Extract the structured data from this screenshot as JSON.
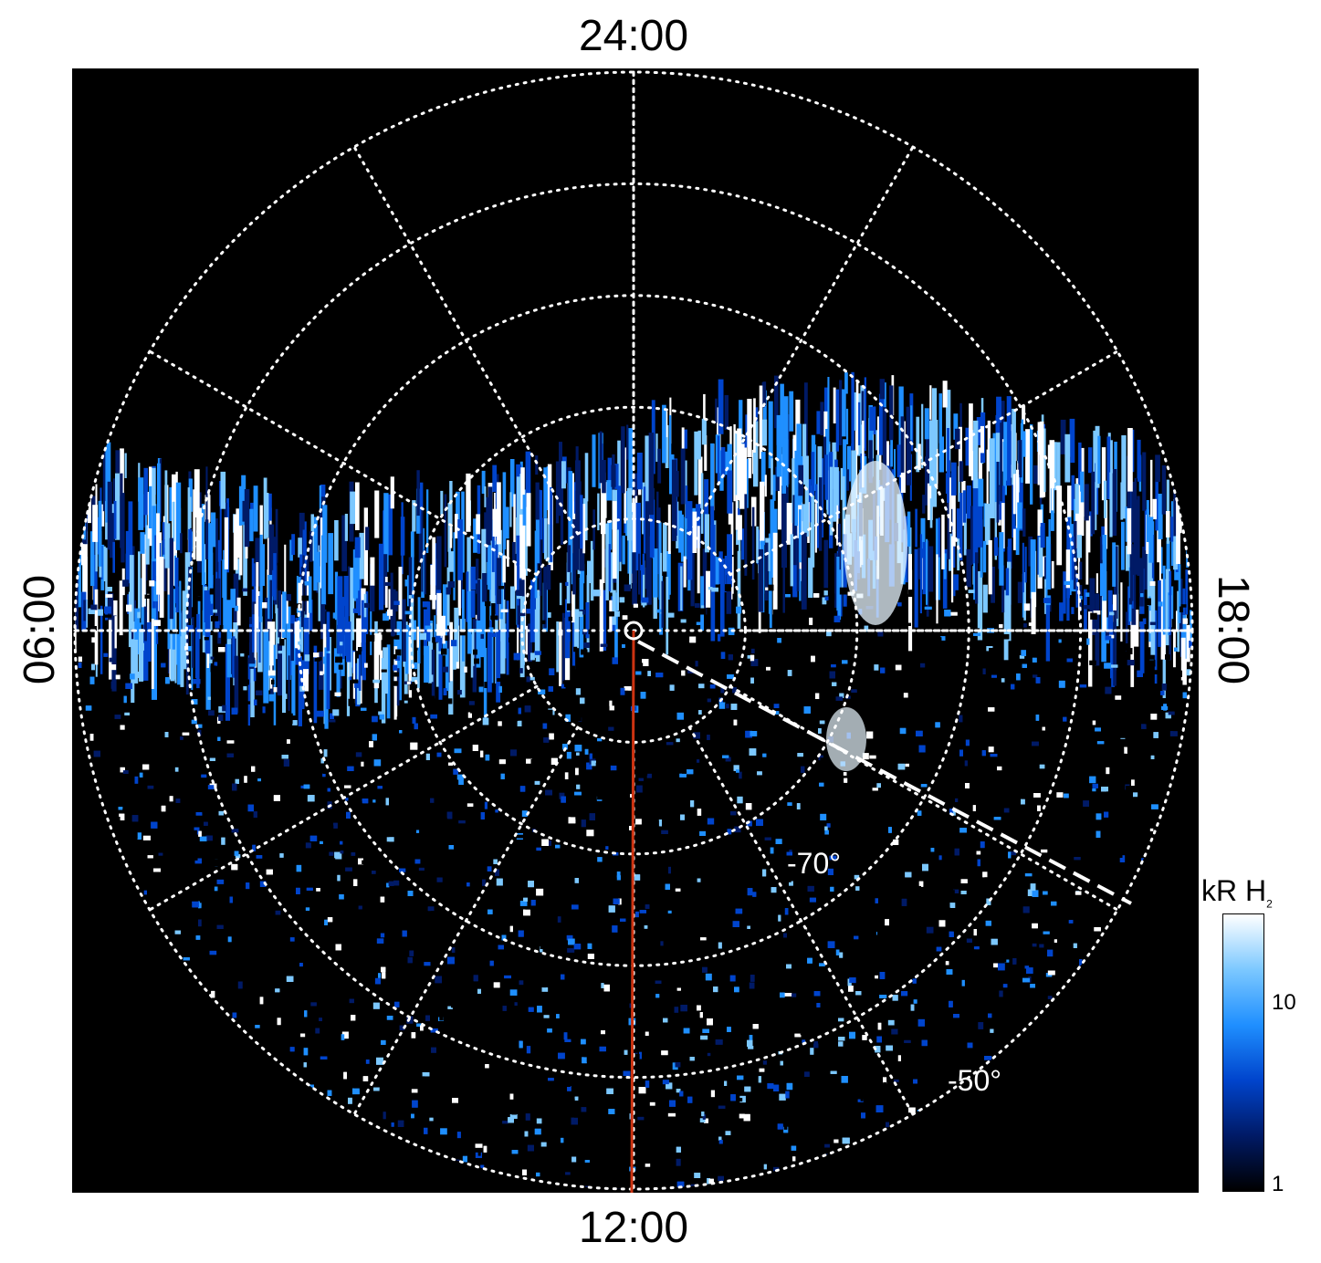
{
  "figure": {
    "local_time_labels": {
      "top": "24:00",
      "bottom": "12:00",
      "left": "06:00",
      "right": "18:00"
    },
    "latitude_labels": {
      "inner": "-70°",
      "outer": "-50°"
    },
    "colorbar": {
      "unit": "kR H",
      "unit_subscript": "2",
      "tick_labels": {
        "mid": "10",
        "low": "1"
      },
      "scale": "log",
      "range_kR": [
        1,
        25
      ],
      "colors": [
        "#000000",
        "#001a66",
        "#0044cc",
        "#1f8fff",
        "#7cc8ff",
        "#ffffff"
      ]
    },
    "grid": {
      "style": "dotted",
      "color": "#ffffff",
      "meridian_spacing_hours": 2,
      "latitude_circles_deg": [
        -90,
        -80,
        -70,
        -60,
        -50,
        -40
      ]
    },
    "overlays": {
      "noon_meridian_color": "#cc3311",
      "dashed_line_color": "#ffffff"
    },
    "background": "#000000"
  }
}
